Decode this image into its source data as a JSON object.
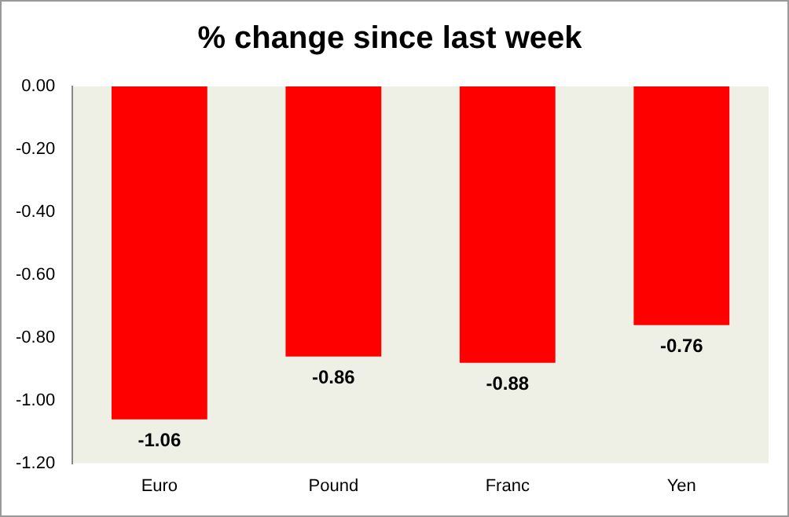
{
  "chart_data": {
    "type": "bar",
    "title": "% change since last week",
    "categories": [
      "Euro",
      "Pound",
      "Franc",
      "Yen"
    ],
    "values": [
      -1.06,
      -0.86,
      -0.88,
      -0.76
    ],
    "color": "#ff0000",
    "ylim": [
      -1.2,
      0
    ],
    "yticks": [
      {
        "value": 0,
        "label": "0.00"
      },
      {
        "value": -0.2,
        "label": "-0.20"
      },
      {
        "value": -0.4,
        "label": "-0.40"
      },
      {
        "value": -0.6,
        "label": "-0.60"
      },
      {
        "value": -0.8,
        "label": "-0.80"
      },
      {
        "value": -1,
        "label": "-1.00"
      },
      {
        "value": -1.2,
        "label": "-1.20"
      }
    ],
    "data_labels": true,
    "grid": false,
    "legend": false
  }
}
